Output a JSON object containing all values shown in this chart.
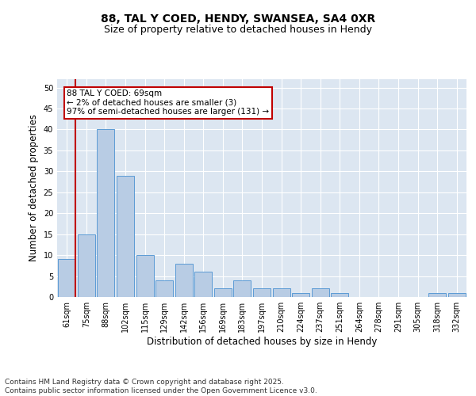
{
  "title1": "88, TAL Y COED, HENDY, SWANSEA, SA4 0XR",
  "title2": "Size of property relative to detached houses in Hendy",
  "xlabel": "Distribution of detached houses by size in Hendy",
  "ylabel": "Number of detached properties",
  "categories": [
    "61sqm",
    "75sqm",
    "88sqm",
    "102sqm",
    "115sqm",
    "129sqm",
    "142sqm",
    "156sqm",
    "169sqm",
    "183sqm",
    "197sqm",
    "210sqm",
    "224sqm",
    "237sqm",
    "251sqm",
    "264sqm",
    "278sqm",
    "291sqm",
    "305sqm",
    "318sqm",
    "332sqm"
  ],
  "values": [
    9,
    15,
    40,
    29,
    10,
    4,
    8,
    6,
    2,
    4,
    2,
    2,
    1,
    2,
    1,
    0,
    0,
    0,
    0,
    1,
    1
  ],
  "bar_color": "#b8cce4",
  "bar_edge_color": "#5b9bd5",
  "annotation_box_text": "88 TAL Y COED: 69sqm\n← 2% of detached houses are smaller (3)\n97% of semi-detached houses are larger (131) →",
  "annotation_box_color": "#ffffff",
  "annotation_box_edge_color": "#c00000",
  "red_line_x": 0.45,
  "footer_text": "Contains HM Land Registry data © Crown copyright and database right 2025.\nContains public sector information licensed under the Open Government Licence v3.0.",
  "ylim": [
    0,
    52
  ],
  "yticks": [
    0,
    5,
    10,
    15,
    20,
    25,
    30,
    35,
    40,
    45,
    50
  ],
  "plot_bg_color": "#dce6f1",
  "fig_bg_color": "#ffffff",
  "grid_color": "#ffffff",
  "title1_fontsize": 10,
  "title2_fontsize": 9,
  "xlabel_fontsize": 8.5,
  "ylabel_fontsize": 8.5,
  "tick_fontsize": 7,
  "annotation_fontsize": 7.5,
  "footer_fontsize": 6.5
}
